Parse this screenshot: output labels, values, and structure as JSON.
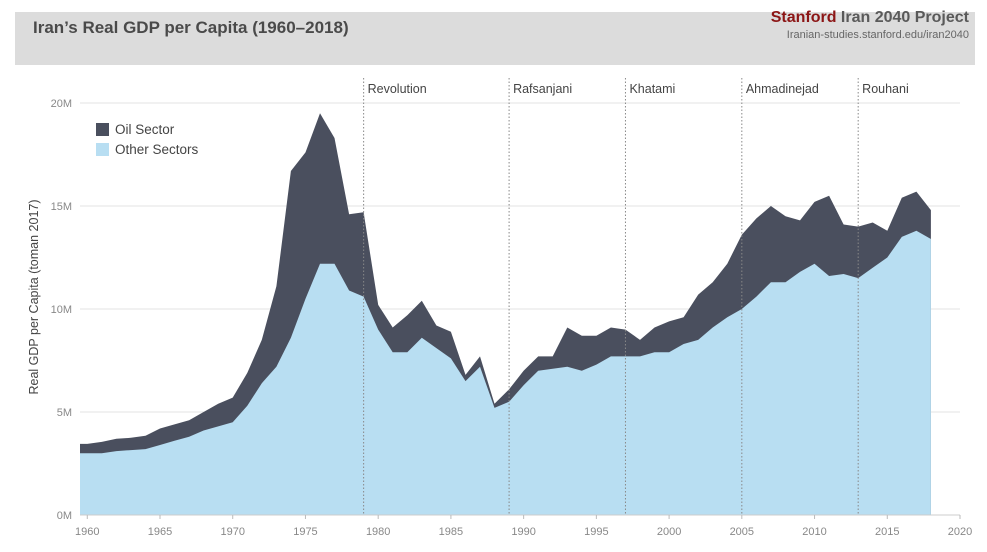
{
  "header": {
    "title": "Iran’s Real GDP per Capita (1960–2018)",
    "brand_stanford": "Stanford",
    "brand_rest": " Iran 2040 Project",
    "url": "Iranian-studies.stanford.edu/iran2040"
  },
  "colors": {
    "oil": "#4a4f5e",
    "other": "#b8def2",
    "grid": "#e3e3e3",
    "header_bg": "#dcdcdc"
  },
  "chart_data": {
    "type": "area",
    "stacked": true,
    "title": "Iran’s Real GDP per Capita (1960–2018)",
    "ylabel": "Real GDP per Capita (toman 2017)",
    "xlabel": "",
    "xlim": [
      1959.5,
      2020
    ],
    "ylim": [
      0,
      20000000
    ],
    "x_ticks": [
      1960,
      1965,
      1970,
      1975,
      1980,
      1985,
      1990,
      1995,
      2000,
      2005,
      2010,
      2015,
      2020
    ],
    "y_ticks": [
      {
        "value": 0,
        "label": "0M"
      },
      {
        "value": 5000000,
        "label": "5M"
      },
      {
        "value": 10000000,
        "label": "10M"
      },
      {
        "value": 15000000,
        "label": "15M"
      },
      {
        "value": 20000000,
        "label": "20M"
      }
    ],
    "legend": {
      "position": "top-left",
      "entries": [
        "Oil Sector",
        "Other Sectors"
      ]
    },
    "x": [
      1959.5,
      1960,
      1961,
      1962,
      1963,
      1964,
      1965,
      1966,
      1967,
      1968,
      1969,
      1970,
      1971,
      1972,
      1973,
      1974,
      1975,
      1976,
      1977,
      1978,
      1979,
      1980,
      1981,
      1982,
      1983,
      1984,
      1985,
      1986,
      1987,
      1988,
      1989,
      1990,
      1991,
      1992,
      1993,
      1994,
      1995,
      1996,
      1997,
      1998,
      1999,
      2000,
      2001,
      2002,
      2003,
      2004,
      2005,
      2006,
      2007,
      2008,
      2009,
      2010,
      2011,
      2012,
      2013,
      2014,
      2015,
      2016,
      2017,
      2018
    ],
    "series": [
      {
        "name": "Other Sectors",
        "values": [
          3.0,
          3.0,
          3.0,
          3.1,
          3.15,
          3.2,
          3.4,
          3.6,
          3.8,
          4.1,
          4.3,
          4.5,
          5.3,
          6.4,
          7.2,
          8.6,
          10.5,
          12.2,
          12.2,
          10.9,
          10.6,
          9.0,
          7.9,
          7.9,
          8.6,
          8.1,
          7.6,
          6.5,
          7.2,
          5.2,
          5.5,
          6.3,
          7.0,
          7.1,
          7.2,
          7.0,
          7.3,
          7.7,
          7.7,
          7.7,
          7.9,
          7.9,
          8.3,
          8.5,
          9.1,
          9.6,
          10.0,
          10.6,
          11.3,
          11.3,
          11.8,
          12.2,
          11.6,
          11.7,
          11.5,
          12.0,
          12.5,
          13.5,
          13.8,
          13.4
        ]
      },
      {
        "name": "Oil Sector",
        "values": [
          0.45,
          0.45,
          0.55,
          0.6,
          0.6,
          0.65,
          0.8,
          0.8,
          0.8,
          0.9,
          1.1,
          1.2,
          1.6,
          2.1,
          3.9,
          8.1,
          7.1,
          7.3,
          6.1,
          3.7,
          4.1,
          1.2,
          1.2,
          1.8,
          1.8,
          1.1,
          1.3,
          0.3,
          0.5,
          0.2,
          0.6,
          0.7,
          0.7,
          0.6,
          1.9,
          1.7,
          1.4,
          1.4,
          1.3,
          0.8,
          1.2,
          1.5,
          1.3,
          2.2,
          2.2,
          2.6,
          3.6,
          3.8,
          3.7,
          3.2,
          2.5,
          3.0,
          3.9,
          2.4,
          2.5,
          2.2,
          1.3,
          1.9,
          1.9,
          1.4
        ]
      }
    ],
    "eras": [
      {
        "year": 1979,
        "label": "Revolution"
      },
      {
        "year": 1989,
        "label": "Rafsanjani"
      },
      {
        "year": 1997,
        "label": "Khatami"
      },
      {
        "year": 2005,
        "label": "Ahmadinejad"
      },
      {
        "year": 2013,
        "label": "Rouhani"
      }
    ]
  }
}
